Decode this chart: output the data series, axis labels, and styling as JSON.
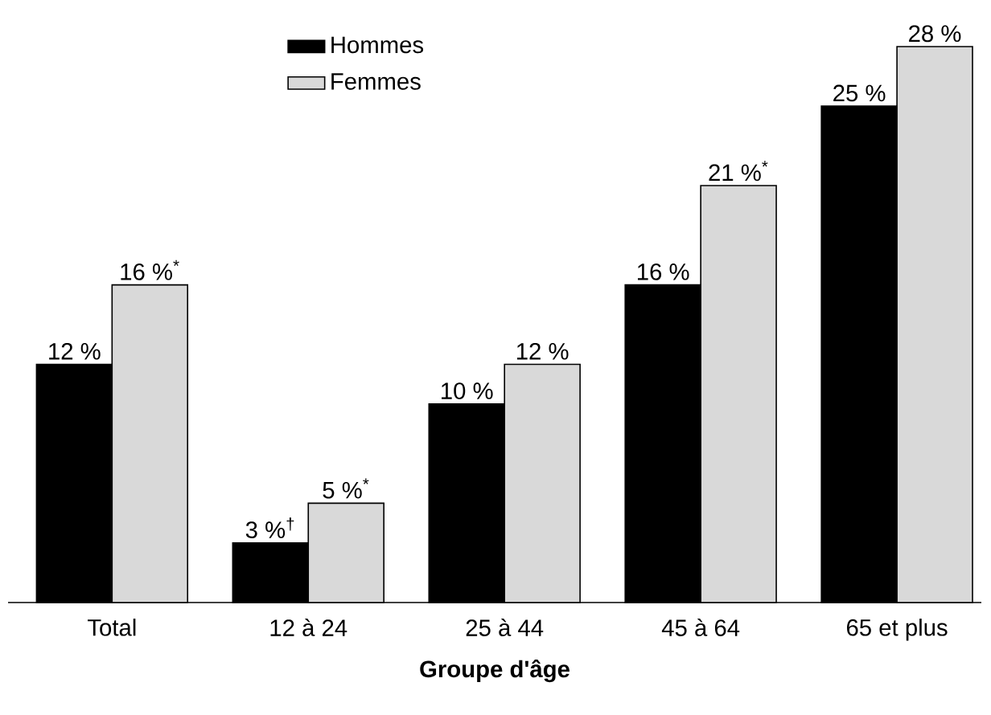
{
  "chart_data": {
    "type": "bar",
    "xlabel": "Groupe d'âge",
    "categories": [
      "Total",
      "12 à 24",
      "25 à 44",
      "45 à 64",
      "65 et plus"
    ],
    "series": [
      {
        "name": "Hommes",
        "color": "#000000",
        "values": [
          12,
          3,
          10,
          16,
          25
        ],
        "value_labels": [
          "12 %",
          "3 %$^{†}$",
          "10 %",
          "16 %",
          "25 %"
        ]
      },
      {
        "name": "Femmes",
        "color": "#d9d9d9",
        "values": [
          16,
          5,
          12,
          21,
          28
        ],
        "value_labels": [
          "16 %$^{*}$",
          "5 %$^{*}$",
          "12 %",
          "21 %$^{*}$",
          "28 %"
        ]
      }
    ],
    "legend": "top left",
    "tick_labels": "x"
  }
}
